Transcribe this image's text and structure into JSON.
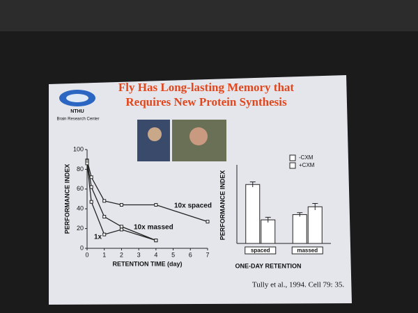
{
  "slide": {
    "title_line1": "Fly Has Long-lasting Memory that",
    "title_line2": "Requires New Protein Synthesis",
    "logo_text": "NTHU",
    "logo_caption": "Brain Research Center",
    "citation": "Tully et al., 1994. Cell 79: 35."
  },
  "chart_data": [
    {
      "type": "line",
      "xlabel": "RETENTION TIME (day)",
      "ylabel": "PERFORMANCE INDEX",
      "x": [
        0,
        0.25,
        1,
        2,
        4,
        7
      ],
      "series": [
        {
          "name": "10x spaced",
          "color": "#222222",
          "values": [
            89,
            72,
            48,
            44,
            44,
            27
          ]
        },
        {
          "name": "10x massed",
          "color": "#222222",
          "values": [
            88,
            62,
            32,
            22,
            8,
            null
          ]
        },
        {
          "name": "1x",
          "color": "#222222",
          "values": [
            86,
            47,
            14,
            19,
            8,
            null
          ]
        }
      ],
      "xlim": [
        0,
        7
      ],
      "xticks": [
        0,
        1,
        2,
        3,
        4,
        5,
        6,
        7
      ],
      "ylim": [
        0,
        100
      ],
      "yticks": [
        0,
        20,
        40,
        60,
        80,
        100
      ]
    },
    {
      "type": "bar",
      "xlabel": "ONE-DAY RETENTION",
      "ylabel": "PERFORMANCE INDEX",
      "categories": [
        "spaced",
        "massed"
      ],
      "series": [
        {
          "name": "-CXM",
          "color": "#ffffff",
          "values": [
            45,
            22
          ],
          "errors": [
            2,
            1.5
          ]
        },
        {
          "name": "+CXM",
          "color": "#ffffff",
          "values": [
            18,
            28
          ],
          "errors": [
            2,
            2.5
          ]
        }
      ],
      "ylim": [
        0,
        60
      ]
    }
  ]
}
